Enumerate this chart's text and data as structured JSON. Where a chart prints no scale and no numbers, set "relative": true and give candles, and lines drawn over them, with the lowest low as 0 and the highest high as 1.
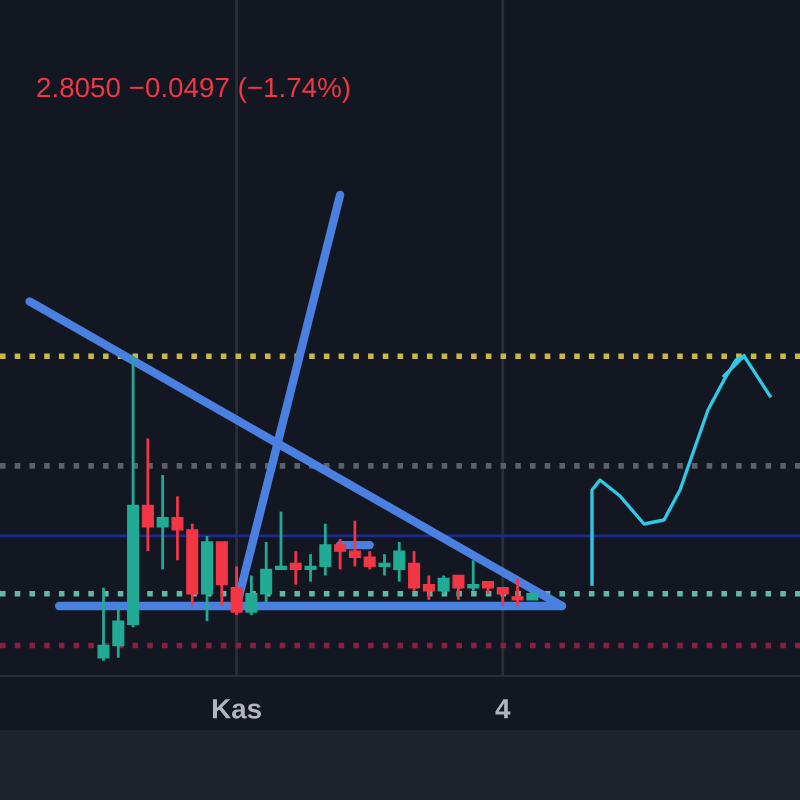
{
  "chart_data": {
    "type": "candlestick",
    "relative": true,
    "subtitle": "2.8050 −0.0497 (−1.74%)",
    "categories": [
      null,
      null,
      null,
      null,
      null,
      null,
      null,
      null,
      null,
      null,
      null,
      null,
      null,
      null,
      "Kas",
      null,
      null,
      null,
      null,
      null,
      null,
      null,
      null,
      null,
      null,
      null,
      null,
      null,
      null,
      null,
      null,
      null,
      "4",
      null,
      null,
      null,
      null
    ],
    "ohlc": [
      null,
      null,
      null,
      null,
      null,
      [
        0.01,
        0.24,
        0,
        0.05
      ],
      [
        0.05,
        0.18,
        0.01,
        0.13
      ],
      [
        0.12,
        1,
        0.11,
        0.51
      ],
      [
        0.51,
        0.73,
        0.36,
        0.44
      ],
      [
        0.44,
        0.61,
        0.3,
        0.47
      ],
      [
        0.47,
        0.54,
        0.33,
        0.43
      ],
      [
        0.43,
        0.45,
        0.18,
        0.22
      ],
      [
        0.22,
        0.41,
        0.13,
        0.39
      ],
      [
        0.39,
        0.39,
        0.18,
        0.25
      ],
      [
        0.24,
        0.31,
        0.15,
        0.16
      ],
      [
        0.16,
        0.28,
        0.15,
        0.22
      ],
      [
        0.22,
        0.39,
        0.19,
        0.3
      ],
      [
        0.3,
        0.49,
        0.3,
        0.31
      ],
      [
        0.32,
        0.36,
        0.25,
        0.3
      ],
      [
        0.3,
        0.35,
        0.26,
        0.31
      ],
      [
        0.31,
        0.45,
        0.28,
        0.38
      ],
      [
        0.38,
        0.4,
        0.3,
        0.36
      ],
      [
        0.36,
        0.46,
        0.31,
        0.34
      ],
      [
        0.34,
        0.36,
        0.3,
        0.31
      ],
      [
        0.31,
        0.35,
        0.28,
        0.32
      ],
      [
        0.3,
        0.39,
        0.26,
        0.36
      ],
      [
        0.32,
        0.36,
        0.23,
        0.24
      ],
      [
        0.25,
        0.28,
        0.2,
        0.23
      ],
      [
        0.23,
        0.28,
        0.22,
        0.27
      ],
      [
        0.28,
        0.28,
        0.2,
        0.24
      ],
      [
        0.24,
        0.33,
        0.23,
        0.25
      ],
      [
        0.26,
        0.26,
        0.22,
        0.24
      ],
      [
        0.24,
        0.24,
        0.18,
        0.22
      ],
      [
        0.21,
        0.27,
        0.18,
        0.2
      ],
      [
        0.2,
        0.23,
        0.2,
        0.22
      ],
      null,
      null
    ],
    "colors": [
      null,
      null,
      null,
      null,
      null,
      "#22ab94",
      "#22ab94",
      "#22ab94",
      "#f23645",
      "#22ab94",
      "#f23645",
      "#f23645",
      "#22ab94",
      "#f23645",
      "#f23645",
      "#22ab94",
      "#22ab94",
      "#22ab94",
      "#f23645",
      "#22ab94",
      "#22ab94",
      "#f23645",
      "#f23645",
      "#f23645",
      "#22ab94",
      "#22ab94",
      "#f23645",
      "#f23645",
      "#22ab94",
      "#f23645",
      "#22ab94",
      "#f23645",
      "#f23645",
      "#f23645",
      "#22ab94",
      null,
      null
    ],
    "ref_lines": [
      {
        "axis": "y",
        "value": 1.0,
        "color": "#c9b843",
        "line_style": "dotted"
      },
      {
        "axis": "y",
        "value": 0.64,
        "color": "#5d606b",
        "line_style": "dotted"
      },
      {
        "axis": "y",
        "value": 0.41,
        "color": "#1c2a8c",
        "line_style": "solid"
      },
      {
        "axis": "y",
        "value": 0.22,
        "color": "#5fb8a8",
        "line_style": "dotted"
      },
      {
        "axis": "y",
        "value": 0.05,
        "color": "#8c1f3f",
        "line_style": "dotted"
      }
    ],
    "series": [
      {
        "type": "line",
        "color": "#4a80e0",
        "values": [
          1.18,
          null,
          null,
          null,
          null,
          null,
          null,
          null,
          null,
          null,
          null,
          null,
          null,
          null,
          null,
          null,
          null,
          null,
          null,
          null,
          null,
          null,
          null,
          null,
          null,
          null,
          null,
          null,
          null,
          null,
          null,
          null,
          null,
          null,
          null,
          null,
          0.18
        ]
      },
      {
        "type": "line",
        "color": "#4a80e0",
        "values": [
          null,
          null,
          null,
          null,
          null,
          null,
          null,
          null,
          null,
          null,
          null,
          null,
          null,
          null,
          0.18,
          null,
          null,
          null,
          null,
          null,
          null,
          1.53,
          null,
          null,
          null,
          null,
          null,
          null,
          null,
          null,
          null,
          null,
          null,
          null,
          null,
          null,
          null
        ]
      },
      {
        "type": "line",
        "color": "#4a80e0",
        "values": [
          null,
          null,
          0.18,
          null,
          null,
          null,
          null,
          null,
          null,
          null,
          null,
          null,
          null,
          null,
          null,
          null,
          null,
          null,
          null,
          null,
          null,
          null,
          null,
          null,
          null,
          null,
          null,
          null,
          null,
          null,
          null,
          null,
          null,
          null,
          null,
          null,
          0.18
        ]
      },
      {
        "type": "line",
        "color": "#4a80e0",
        "values": [
          null,
          null,
          null,
          null,
          null,
          null,
          null,
          null,
          null,
          null,
          null,
          null,
          null,
          null,
          null,
          null,
          null,
          null,
          null,
          null,
          null,
          0.38,
          null,
          0.38,
          null,
          null,
          null,
          null,
          null,
          null,
          null,
          null,
          null,
          null,
          null,
          null,
          null
        ]
      }
    ],
    "grid": "x"
  }
}
